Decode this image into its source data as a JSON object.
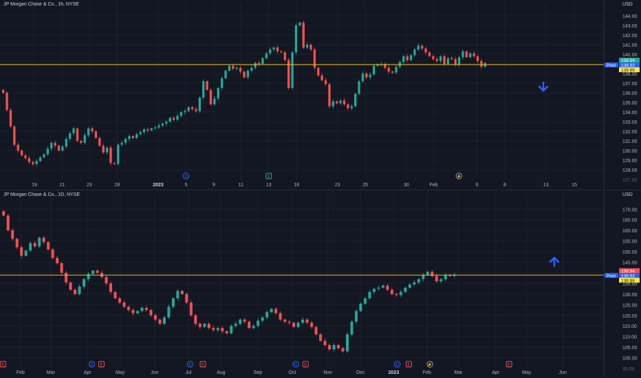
{
  "colors": {
    "background": "#131722",
    "grid": "#1e222d",
    "axis_text": "#b2b5be",
    "up": "#26a69a",
    "down": "#ef5350",
    "level_line": "#f0c419",
    "arrow": "#2962ff",
    "badge_green": "#26a69a",
    "badge_red": "#ef5350",
    "badge_blue": "#2962ff",
    "badge_yellow": "#ffeb3b"
  },
  "chart_data": [
    {
      "type": "candlestick",
      "title": "JP Morgan Chase & Co., 1h, NYSE",
      "unit": "USD",
      "ylim": [
        127,
        144.5
      ],
      "yticks": [
        128,
        129,
        130,
        131,
        132,
        133,
        134,
        135,
        136,
        137,
        138,
        139,
        140,
        141,
        142,
        143,
        144
      ],
      "ytick_labels": [
        "128.00",
        "129.00",
        "130.00",
        "131.00",
        "132.00",
        "133.00",
        "134.00",
        "135.00",
        "136.00",
        "137.00",
        "138.00",
        "139.00",
        "140.00",
        "141.00",
        "142.00",
        "143.00",
        "144.00"
      ],
      "bottom_label": "127.00",
      "xtick_labels": [
        "19",
        "21",
        "23",
        "28",
        "2023",
        "5",
        "9",
        "11",
        "13",
        "18",
        "23",
        "25",
        "30",
        "Feb",
        "6",
        "8",
        "13",
        "15"
      ],
      "xtick_positions": [
        0.057,
        0.103,
        0.148,
        0.194,
        0.262,
        0.308,
        0.354,
        0.399,
        0.445,
        0.491,
        0.559,
        0.605,
        0.673,
        0.718,
        0.79,
        0.836,
        0.904,
        0.951
      ],
      "level": 138.93,
      "price_badges": [
        {
          "label": "138.94",
          "color": "green"
        },
        {
          "label": "138.93",
          "color": "blue",
          "prefix": "Post"
        },
        {
          "label": "138.66",
          "color": "yellow"
        }
      ],
      "event_markers": [
        {
          "label": "D",
          "pos": 0.308
        },
        {
          "label": "E",
          "pos": 0.445
        },
        {
          "label": "⚡",
          "pos": 0.76
        }
      ],
      "arrow": "down",
      "closes": [
        136.0,
        134.2,
        132.5,
        130.6,
        130.0,
        129.5,
        129.2,
        128.8,
        128.6,
        128.9,
        129.3,
        129.6,
        130.2,
        130.8,
        130.5,
        130.0,
        130.4,
        131.2,
        131.8,
        132.3,
        131.0,
        130.8,
        131.6,
        132.3,
        132.0,
        131.3,
        130.5,
        129.8,
        130.3,
        128.7,
        128.6,
        130.6,
        130.8,
        131.2,
        131.5,
        131.3,
        131.7,
        131.9,
        132.2,
        132.1,
        132.3,
        132.4,
        132.6,
        132.8,
        133.0,
        133.4,
        133.2,
        133.6,
        134.0,
        134.1,
        134.5,
        134.3,
        134.1,
        135.5,
        137.2,
        136.3,
        134.8,
        135.4,
        136.5,
        137.5,
        138.3,
        138.8,
        138.5,
        138.6,
        138.2,
        137.6,
        138.3,
        138.6,
        139.1,
        139.0,
        139.6,
        140.1,
        140.5,
        140.7,
        140.3,
        140.2,
        139.4,
        136.5,
        140.2,
        143.0,
        143.3,
        140.7,
        141.0,
        140.5,
        138.6,
        137.8,
        137.3,
        136.9,
        134.6,
        135.1,
        134.9,
        135.2,
        134.8,
        134.4,
        134.6,
        135.9,
        137.2,
        138.0,
        137.6,
        137.9,
        138.8,
        138.9,
        139.0,
        138.6,
        138.2,
        138.1,
        138.7,
        139.2,
        139.8,
        139.4,
        139.9,
        140.5,
        140.9,
        140.6,
        140.2,
        139.8,
        139.5,
        139.3,
        139.8,
        139.0,
        139.6,
        139.5,
        138.9,
        139.7,
        140.3,
        139.7,
        140.1,
        139.8,
        139.3,
        138.7,
        139.1
      ]
    },
    {
      "type": "candlestick",
      "title": "JP Morgan Chase & Co., 1D, NYSE",
      "unit": "USD",
      "ylim": [
        95,
        173
      ],
      "yticks": [
        100,
        105,
        110,
        115,
        120,
        125,
        130,
        135,
        140,
        145,
        150,
        155,
        160,
        165,
        170
      ],
      "ytick_labels": [
        "100.00",
        "105.00",
        "110.00",
        "115.00",
        "120.00",
        "125.00",
        "130.00",
        "135.00",
        "140.00",
        "145.00",
        "150.00",
        "155.00",
        "160.00",
        "165.00",
        "170.00"
      ],
      "bottom_label": "95.00",
      "xtick_labels": [
        "Feb",
        "Mar",
        "Apr",
        "May",
        "Jun",
        "Jul",
        "Aug",
        "Sep",
        "Oct",
        "Nov",
        "Dec",
        "2023",
        "Feb",
        "Mar",
        "Apr",
        "May",
        "Jun"
      ],
      "xtick_positions": [
        0.034,
        0.084,
        0.145,
        0.199,
        0.256,
        0.312,
        0.366,
        0.427,
        0.484,
        0.543,
        0.597,
        0.652,
        0.707,
        0.759,
        0.821,
        0.872,
        0.932
      ],
      "level": 138.93,
      "price_badges": [
        {
          "label": "138.94",
          "color": "red"
        },
        {
          "label": "138.93",
          "color": "blue",
          "prefix": "Post"
        },
        {
          "label": "138.88",
          "color": "yellow"
        }
      ],
      "event_markers": [
        {
          "label": "E",
          "pos": 0.005
        },
        {
          "label": "D",
          "pos": 0.152
        },
        {
          "label": "E",
          "pos": 0.168
        },
        {
          "label": "D",
          "pos": 0.315
        },
        {
          "label": "E",
          "pos": 0.336
        },
        {
          "label": "D",
          "pos": 0.49
        },
        {
          "label": "E",
          "pos": 0.506
        },
        {
          "label": "D",
          "pos": 0.658
        },
        {
          "label": "E",
          "pos": 0.677
        },
        {
          "label": "⚡",
          "pos": 0.712
        },
        {
          "label": "E",
          "pos": 0.843
        }
      ],
      "arrow": "up",
      "closes": [
        167.0,
        160.0,
        156.0,
        152.0,
        148.0,
        150.5,
        154.0,
        152.5,
        156.5,
        154.5,
        151.0,
        147.0,
        144.5,
        140.0,
        135.5,
        132.0,
        130.0,
        133.5,
        137.0,
        139.5,
        141.0,
        140.0,
        138.0,
        135.0,
        131.0,
        128.0,
        126.0,
        124.0,
        122.5,
        121.0,
        122.0,
        123.5,
        122.5,
        120.0,
        118.0,
        116.0,
        119.0,
        124.0,
        128.0,
        131.5,
        130.0,
        126.0,
        120.0,
        116.0,
        114.5,
        116.0,
        114.0,
        113.0,
        114.0,
        112.5,
        111.5,
        115.0,
        116.0,
        118.0,
        117.0,
        114.0,
        115.0,
        117.5,
        119.0,
        121.5,
        123.0,
        121.0,
        118.0,
        117.0,
        116.5,
        114.5,
        116.5,
        118.0,
        116.5,
        114.5,
        111.0,
        108.0,
        106.0,
        104.0,
        106.0,
        104.5,
        103.0,
        111.0,
        117.0,
        122.0,
        125.5,
        128.0,
        131.0,
        132.5,
        133.0,
        134.0,
        132.0,
        130.0,
        129.5,
        131.0,
        133.0,
        134.5,
        135.5,
        137.0,
        139.0,
        140.5,
        138.5,
        136.0,
        137.0,
        139.0,
        138.5,
        139.2
      ]
    }
  ]
}
